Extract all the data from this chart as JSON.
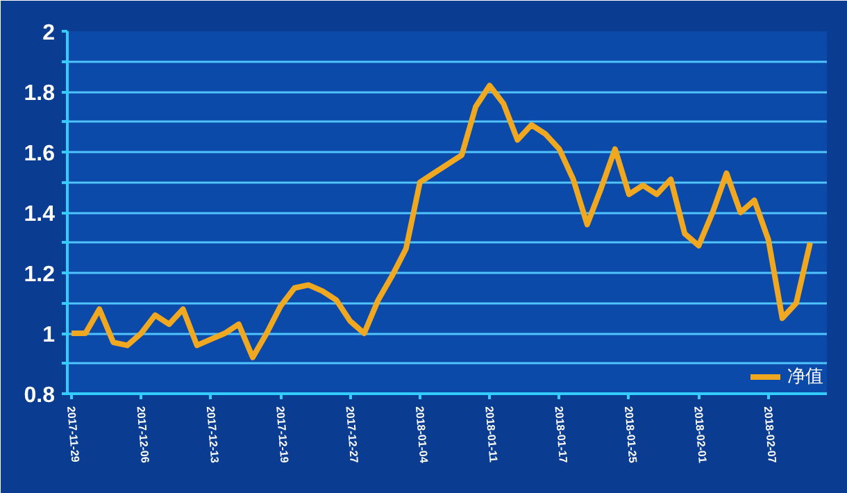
{
  "chart_data": {
    "type": "line",
    "categories": [
      "2017-11-29",
      null,
      null,
      null,
      null,
      "2017-12-06",
      null,
      null,
      null,
      null,
      "2017-12-13",
      null,
      null,
      null,
      null,
      "2017-12-19",
      null,
      null,
      null,
      null,
      "2017-12-27",
      null,
      null,
      null,
      null,
      "2018-01-04",
      null,
      null,
      null,
      null,
      "2018-01-11",
      null,
      null,
      null,
      null,
      "2018-01-17",
      null,
      null,
      null,
      null,
      "2018-01-25",
      null,
      null,
      null,
      null,
      "2018-02-01",
      null,
      null,
      null,
      null,
      "2018-02-07",
      null,
      null,
      null
    ],
    "series": [
      {
        "name": "净值",
        "color": "#f0a820",
        "values": [
          1.0,
          1.0,
          1.08,
          0.97,
          0.96,
          1.0,
          1.06,
          1.03,
          1.08,
          0.96,
          0.98,
          1.0,
          1.03,
          0.92,
          1.0,
          1.09,
          1.15,
          1.16,
          1.14,
          1.11,
          1.04,
          1.0,
          1.11,
          1.19,
          1.28,
          1.5,
          1.53,
          1.56,
          1.59,
          1.75,
          1.82,
          1.76,
          1.64,
          1.69,
          1.66,
          1.61,
          1.51,
          1.36,
          1.48,
          1.61,
          1.46,
          1.49,
          1.46,
          1.51,
          1.33,
          1.29,
          1.4,
          1.53,
          1.4,
          1.44,
          1.31,
          1.05,
          1.1,
          1.3
        ]
      }
    ],
    "ylim": [
      0.8,
      2
    ],
    "yticks": [
      0.8,
      {
        "value": 0.9,
        "label": null
      },
      1,
      {
        "value": 1.1,
        "label": null
      },
      1.2,
      {
        "value": 1.3,
        "label": null
      },
      1.4,
      {
        "value": 1.5,
        "label": null
      },
      1.6,
      {
        "value": 1.7,
        "label": null
      },
      1.8,
      {
        "value": 1.9,
        "label": null
      },
      2
    ],
    "grid": "y",
    "legend": "bottom right",
    "marker": "none",
    "line_style": "solid"
  }
}
